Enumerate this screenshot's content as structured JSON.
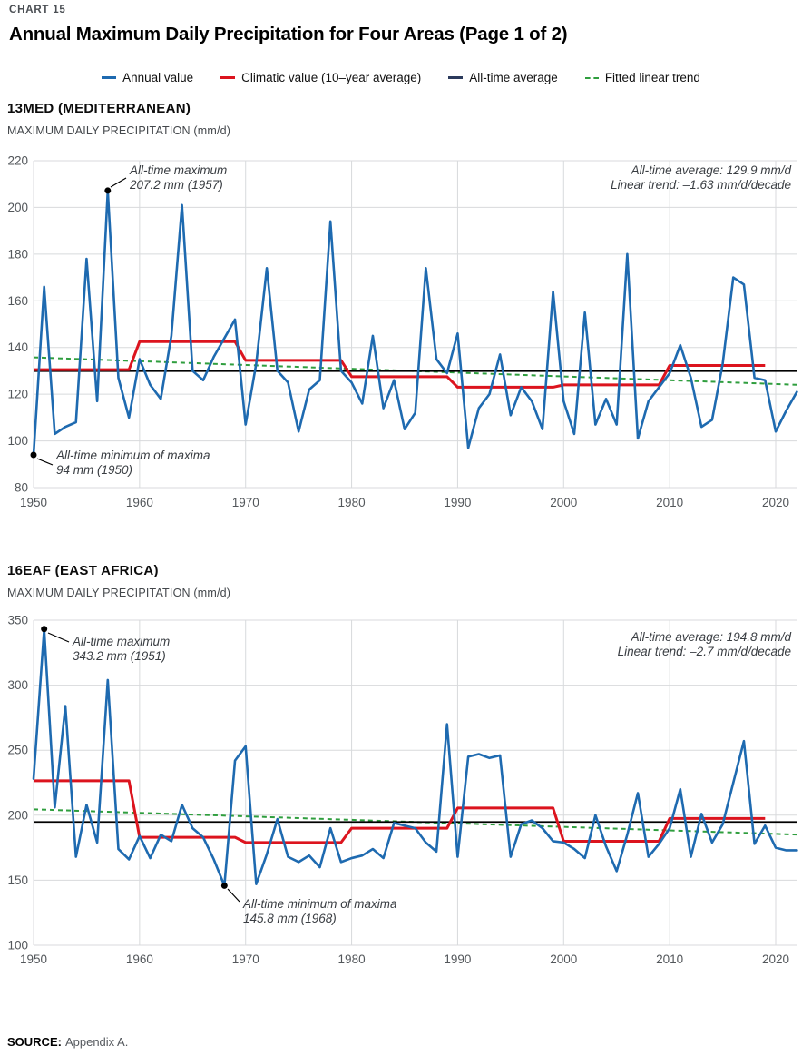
{
  "page": {
    "kicker": "CHART 15",
    "title": "Annual Maximum Daily Precipitation for Four Areas (Page 1 of 2)",
    "source_label": "SOURCE:",
    "source_value": "Appendix A."
  },
  "legend": {
    "items": [
      {
        "label": "Annual value",
        "color": "#1e6ab0",
        "line_style": "solid"
      },
      {
        "label": "Climatic value (10–year average)",
        "color": "#dc141e",
        "line_style": "solid"
      },
      {
        "label": "All-time average",
        "color": "#2b3a5c",
        "line_style": "solid"
      },
      {
        "label": "Fitted linear trend",
        "color": "#2f9e3e",
        "line_style": "dashed"
      }
    ]
  },
  "colors": {
    "annual": "#1e6ab0",
    "climatic": "#dc141e",
    "average": "#000000",
    "trend": "#2f9e3e",
    "grid": "#d8dadc",
    "tick_label": "#53575b",
    "annotation": "#393d42"
  },
  "chart_data": [
    {
      "type": "line",
      "title": "13MED (MEDITERRANEAN)",
      "ylabel": "MAXIMUM DAILY PRECIPITATION (mm/d)",
      "ylim": [
        80,
        220
      ],
      "yticks": [
        220,
        200,
        180,
        160,
        140,
        120,
        100,
        80
      ],
      "xticks": [
        1950,
        1960,
        1970,
        1980,
        1990,
        2000,
        2010,
        2020
      ],
      "x_start_year": 1950,
      "x_end_year": 2022,
      "annual_values": [
        94,
        166,
        103,
        106,
        108,
        178,
        117,
        207.2,
        127,
        110,
        135,
        124,
        118,
        145,
        201,
        130,
        126,
        136,
        144,
        152,
        107,
        133,
        174,
        130,
        125,
        104,
        122,
        126,
        194,
        130,
        125,
        116,
        145,
        114,
        126,
        105,
        112,
        174,
        135,
        129,
        146,
        97,
        114,
        120,
        137,
        111,
        123,
        117,
        105,
        164,
        117,
        103,
        155,
        107,
        118,
        107,
        180,
        101,
        117,
        123,
        129,
        141,
        127,
        106,
        109,
        133,
        170,
        167,
        127,
        126,
        104,
        113,
        121
      ],
      "climatic_10yr": {
        "decade_start_years": [
          1950,
          1960,
          1970,
          1980,
          1990,
          2000,
          2010
        ],
        "values": [
          130.5,
          142.5,
          134.5,
          127.5,
          123,
          124,
          132.3
        ],
        "last_year": 2019
      },
      "all_time_average": 129.9,
      "trend_mm_per_decade": -1.63,
      "annotations": {
        "max": {
          "line1": "All-time maximum",
          "line2": "207.2 mm (1957)",
          "year": 1957,
          "value": 207.2
        },
        "min": {
          "line1": "All-time minimum of maxima",
          "line2": "94 mm (1950)",
          "year": 1950,
          "value": 94
        },
        "stats_line1": "All-time average: 129.9 mm/d",
        "stats_line2": "Linear trend: –1.63 mm/d/decade"
      }
    },
    {
      "type": "line",
      "title": "16EAF (EAST AFRICA)",
      "ylabel": "MAXIMUM DAILY PRECIPITATION (mm/d)",
      "ylim": [
        100,
        350
      ],
      "yticks": [
        350,
        300,
        250,
        200,
        150,
        100
      ],
      "xticks": [
        1950,
        1960,
        1970,
        1980,
        1990,
        2000,
        2010,
        2020
      ],
      "x_start_year": 1950,
      "x_end_year": 2022,
      "annual_values": [
        228,
        343.2,
        206,
        284,
        168,
        208,
        179,
        304,
        174,
        166,
        184,
        167,
        185,
        180,
        208,
        190,
        183,
        166,
        145.8,
        242,
        253,
        147,
        170,
        197,
        168,
        164,
        169,
        160,
        190,
        164,
        167,
        169,
        174,
        167,
        194,
        192,
        190,
        179,
        172,
        270,
        168,
        245,
        247,
        244,
        246,
        168,
        193,
        196,
        190,
        180,
        179,
        174,
        167,
        200,
        176,
        157,
        185,
        217,
        168,
        178,
        190,
        220,
        168,
        201,
        179,
        193,
        225,
        257,
        178,
        192,
        175,
        173,
        173
      ],
      "climatic_10yr": {
        "decade_start_years": [
          1950,
          1960,
          1970,
          1980,
          1990,
          2000,
          2010
        ],
        "values": [
          226.5,
          183,
          179,
          190,
          205.5,
          180,
          197.5
        ],
        "last_year": 2019
      },
      "all_time_average": 194.8,
      "trend_mm_per_decade": -2.7,
      "annotations": {
        "max": {
          "line1": "All-time maximum",
          "line2": "343.2 mm (1951)",
          "year": 1951,
          "value": 343.2
        },
        "min": {
          "line1": "All-time minimum of maxima",
          "line2": "145.8 mm (1968)",
          "year": 1968,
          "value": 145.8
        },
        "stats_line1": "All-time average: 194.8 mm/d",
        "stats_line2": "Linear trend: –2.7 mm/d/decade"
      }
    }
  ]
}
